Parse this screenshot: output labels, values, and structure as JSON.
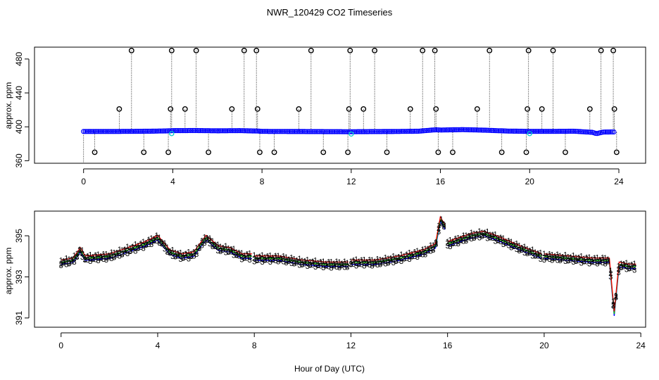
{
  "title": "NWR_120429  CO2 Timeseries",
  "xlabel": "Hour of Day (UTC)",
  "colors": {
    "line": "#0000ff",
    "marker_blue": "#0000ff",
    "marker_cyan": "#00cccc",
    "marker_black": "#000000",
    "label_1": "#ff0000",
    "label_2": "#00cc00",
    "label_3": "#0000ff",
    "frame": "#000000"
  },
  "chart_data": [
    {
      "type": "scatter",
      "name": "top-panel",
      "ylabel": "approx. ppm",
      "xlim": [
        -2.2,
        25.2
      ],
      "ylim": [
        357,
        494
      ],
      "x_ticks": [
        0,
        4,
        8,
        12,
        16,
        20,
        24
      ],
      "x_tick_labels": [
        "0",
        "4",
        "8",
        "12",
        "16",
        "20",
        "24"
      ],
      "y_ticks": [
        360,
        400,
        440,
        480
      ],
      "y_tick_labels": [
        "360",
        "400",
        "440",
        "480"
      ],
      "baseline": [
        [
          0,
          394.5
        ],
        [
          1,
          394.5
        ],
        [
          2,
          394.6
        ],
        [
          3,
          394.8
        ],
        [
          3.8,
          395.2
        ],
        [
          4,
          395.5
        ],
        [
          5,
          395.6
        ],
        [
          6,
          395.3
        ],
        [
          7,
          395.5
        ],
        [
          7.8,
          395.0
        ],
        [
          8,
          394.6
        ],
        [
          10,
          394.4
        ],
        [
          12,
          394.2
        ],
        [
          14,
          394.5
        ],
        [
          15,
          394.8
        ],
        [
          15.8,
          396.5
        ],
        [
          16,
          396.2
        ],
        [
          17,
          396.7
        ],
        [
          18,
          396.0
        ],
        [
          19,
          395.0
        ],
        [
          20,
          394.6
        ],
        [
          21,
          394.6
        ],
        [
          22,
          394.8
        ],
        [
          22.8,
          393.5
        ],
        [
          23,
          392.0
        ],
        [
          23.3,
          393.8
        ],
        [
          23.8,
          394.0
        ]
      ],
      "outliers": [
        {
          "x": 0.5,
          "y": 370
        },
        {
          "x": 1.6,
          "y": 421
        },
        {
          "x": 2.15,
          "y": 490
        },
        {
          "x": 2.7,
          "y": 370
        },
        {
          "x": 3.8,
          "y": 370
        },
        {
          "x": 3.9,
          "y": 421
        },
        {
          "x": 3.95,
          "y": 490
        },
        {
          "x": 4.55,
          "y": 421
        },
        {
          "x": 5.05,
          "y": 490
        },
        {
          "x": 5.6,
          "y": 370
        },
        {
          "x": 6.65,
          "y": 421
        },
        {
          "x": 7.2,
          "y": 490
        },
        {
          "x": 7.75,
          "y": 490
        },
        {
          "x": 7.8,
          "y": 421
        },
        {
          "x": 7.9,
          "y": 370
        },
        {
          "x": 8.55,
          "y": 370
        },
        {
          "x": 9.65,
          "y": 421
        },
        {
          "x": 10.2,
          "y": 490
        },
        {
          "x": 10.75,
          "y": 370
        },
        {
          "x": 11.85,
          "y": 370
        },
        {
          "x": 11.9,
          "y": 421
        },
        {
          "x": 11.95,
          "y": 490
        },
        {
          "x": 12.55,
          "y": 421
        },
        {
          "x": 13.05,
          "y": 490
        },
        {
          "x": 13.6,
          "y": 370
        },
        {
          "x": 14.65,
          "y": 421
        },
        {
          "x": 15.2,
          "y": 490
        },
        {
          "x": 15.75,
          "y": 490
        },
        {
          "x": 15.8,
          "y": 421
        },
        {
          "x": 15.9,
          "y": 370
        },
        {
          "x": 16.55,
          "y": 370
        },
        {
          "x": 17.65,
          "y": 421
        },
        {
          "x": 18.2,
          "y": 490
        },
        {
          "x": 18.75,
          "y": 370
        },
        {
          "x": 19.85,
          "y": 370
        },
        {
          "x": 19.9,
          "y": 421
        },
        {
          "x": 19.95,
          "y": 490
        },
        {
          "x": 20.55,
          "y": 421
        },
        {
          "x": 21.05,
          "y": 490
        },
        {
          "x": 21.6,
          "y": 370
        },
        {
          "x": 22.7,
          "y": 421
        },
        {
          "x": 23.2,
          "y": 490
        },
        {
          "x": 23.75,
          "y": 490
        },
        {
          "x": 23.8,
          "y": 421
        },
        {
          "x": 23.9,
          "y": 370
        }
      ],
      "cyan_markers": [
        {
          "x": 3.95,
          "y": 392
        },
        {
          "x": 12.0,
          "y": 391.5
        },
        {
          "x": 20.0,
          "y": 392
        }
      ]
    },
    {
      "type": "line",
      "name": "bottom-panel",
      "ylabel": "approx. ppm",
      "xlim": [
        -1.1,
        24.2
      ],
      "ylim": [
        390.55,
        396.2
      ],
      "x_ticks": [
        0,
        4,
        8,
        12,
        16,
        20,
        24
      ],
      "x_tick_labels": [
        "0",
        "4",
        "8",
        "12",
        "16",
        "20",
        "24"
      ],
      "y_ticks": [
        391,
        393,
        395
      ],
      "y_tick_labels": [
        "391",
        "393",
        "395"
      ],
      "gaps_after_hours": [
        7.9,
        11.9,
        15.9,
        19.9
      ],
      "series_labels": [
        "1",
        "2",
        "3"
      ],
      "points": [
        [
          0,
          393.7
        ],
        [
          0.5,
          393.8
        ],
        [
          0.8,
          394.3
        ],
        [
          1.0,
          393.9
        ],
        [
          2.0,
          394.0
        ],
        [
          3.0,
          394.4
        ],
        [
          3.5,
          394.6
        ],
        [
          4.0,
          394.9
        ],
        [
          4.5,
          394.2
        ],
        [
          5.0,
          394.0
        ],
        [
          5.5,
          394.1
        ],
        [
          6.0,
          394.9
        ],
        [
          6.5,
          394.4
        ],
        [
          7.0,
          394.3
        ],
        [
          7.5,
          394.0
        ],
        [
          7.9,
          394.0
        ],
        [
          8.0,
          393.9
        ],
        [
          9.0,
          393.9
        ],
        [
          10.0,
          393.7
        ],
        [
          11.0,
          393.6
        ],
        [
          11.9,
          393.6
        ],
        [
          12.0,
          393.7
        ],
        [
          13.0,
          393.7
        ],
        [
          14.0,
          393.9
        ],
        [
          15.0,
          394.2
        ],
        [
          15.5,
          394.5
        ],
        [
          15.7,
          395.8
        ],
        [
          15.9,
          395.4
        ],
        [
          16.0,
          394.6
        ],
        [
          17.0,
          395.0
        ],
        [
          17.5,
          395.1
        ],
        [
          18.0,
          394.9
        ],
        [
          19.0,
          394.4
        ],
        [
          19.9,
          394.0
        ],
        [
          20.0,
          394.0
        ],
        [
          21.0,
          393.9
        ],
        [
          22.0,
          393.8
        ],
        [
          22.7,
          393.8
        ],
        [
          22.9,
          391.2
        ],
        [
          23.1,
          393.6
        ],
        [
          23.5,
          393.5
        ],
        [
          23.8,
          393.5
        ]
      ]
    }
  ]
}
